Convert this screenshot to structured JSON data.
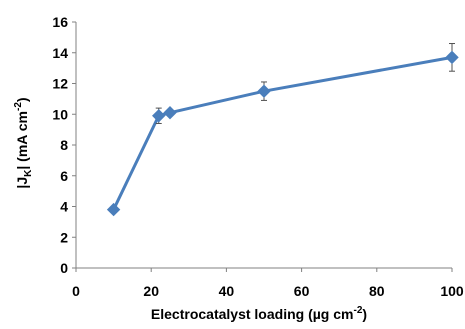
{
  "chart_data": {
    "type": "line",
    "title": "",
    "xlabel": "Electrocatalyst loading (µg cm",
    "xlabel_sup": "-2",
    "xlabel_end": ")",
    "ylabel_start": "|J",
    "ylabel_sub": "K",
    "ylabel_mid": "| (mA cm",
    "ylabel_sup": "-2",
    "ylabel_end": ")",
    "xlim": [
      0,
      100
    ],
    "ylim": [
      0,
      16
    ],
    "x_ticks": [
      0,
      20,
      40,
      60,
      80,
      100
    ],
    "y_ticks": [
      0,
      2,
      4,
      6,
      8,
      10,
      12,
      14,
      16
    ],
    "grid": false,
    "legend": "none",
    "series": [
      {
        "color": "#4a7ebb",
        "marker": "diamond",
        "x": [
          10,
          22,
          25,
          50,
          100
        ],
        "y": [
          3.8,
          9.9,
          10.1,
          11.5,
          13.7
        ],
        "error": [
          0.1,
          0.5,
          0.2,
          0.6,
          0.9
        ]
      }
    ]
  }
}
